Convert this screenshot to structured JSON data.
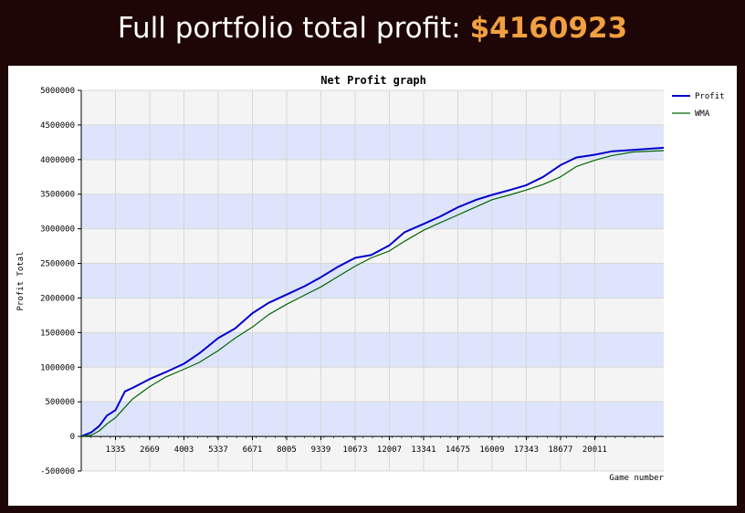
{
  "header": {
    "label": "Full portfolio total profit:",
    "amount": "$4160923",
    "amount_color": "#f0a040"
  },
  "chart_data": {
    "type": "line",
    "title": "Net Profit graph",
    "xlabel": "Game number",
    "ylabel": "Profit Total",
    "xlim": [
      0,
      22700
    ],
    "ylim": [
      -500000,
      5000000
    ],
    "xticks": [
      1335,
      2669,
      4003,
      5337,
      6671,
      8005,
      9339,
      10673,
      12007,
      13341,
      14675,
      16009,
      17343,
      18677,
      20011
    ],
    "yticks": [
      -500000,
      0,
      500000,
      1000000,
      1500000,
      2000000,
      2500000,
      3000000,
      3500000,
      4000000,
      4500000,
      5000000
    ],
    "grid": true,
    "legend_position": "top-right",
    "series": [
      {
        "name": "Profit",
        "color": "#0000cc",
        "points": [
          [
            0,
            0
          ],
          [
            400,
            60000
          ],
          [
            700,
            150000
          ],
          [
            1000,
            300000
          ],
          [
            1335,
            380000
          ],
          [
            1700,
            650000
          ],
          [
            2000,
            700000
          ],
          [
            2669,
            830000
          ],
          [
            3300,
            930000
          ],
          [
            4003,
            1050000
          ],
          [
            4600,
            1200000
          ],
          [
            5337,
            1420000
          ],
          [
            6000,
            1560000
          ],
          [
            6671,
            1780000
          ],
          [
            7300,
            1930000
          ],
          [
            8005,
            2050000
          ],
          [
            8700,
            2170000
          ],
          [
            9339,
            2300000
          ],
          [
            10000,
            2450000
          ],
          [
            10673,
            2580000
          ],
          [
            11300,
            2620000
          ],
          [
            12007,
            2760000
          ],
          [
            12600,
            2950000
          ],
          [
            13341,
            3070000
          ],
          [
            14000,
            3180000
          ],
          [
            14675,
            3310000
          ],
          [
            15400,
            3420000
          ],
          [
            16009,
            3490000
          ],
          [
            16700,
            3560000
          ],
          [
            17343,
            3630000
          ],
          [
            18000,
            3750000
          ],
          [
            18677,
            3920000
          ],
          [
            19300,
            4030000
          ],
          [
            20011,
            4070000
          ],
          [
            20700,
            4120000
          ],
          [
            21500,
            4140000
          ],
          [
            22700,
            4170000
          ]
        ]
      },
      {
        "name": "WMA",
        "color": "#006600",
        "points": [
          [
            0,
            0
          ],
          [
            400,
            20000
          ],
          [
            700,
            80000
          ],
          [
            1000,
            180000
          ],
          [
            1335,
            270000
          ],
          [
            1700,
            420000
          ],
          [
            2000,
            540000
          ],
          [
            2669,
            720000
          ],
          [
            3300,
            860000
          ],
          [
            4003,
            970000
          ],
          [
            4600,
            1070000
          ],
          [
            5337,
            1240000
          ],
          [
            6000,
            1420000
          ],
          [
            6671,
            1580000
          ],
          [
            7300,
            1760000
          ],
          [
            8005,
            1910000
          ],
          [
            8700,
            2040000
          ],
          [
            9339,
            2160000
          ],
          [
            10000,
            2310000
          ],
          [
            10673,
            2460000
          ],
          [
            11300,
            2580000
          ],
          [
            12007,
            2680000
          ],
          [
            12600,
            2820000
          ],
          [
            13341,
            2980000
          ],
          [
            14000,
            3090000
          ],
          [
            14675,
            3200000
          ],
          [
            15400,
            3320000
          ],
          [
            16009,
            3420000
          ],
          [
            16700,
            3490000
          ],
          [
            17343,
            3560000
          ],
          [
            18000,
            3640000
          ],
          [
            18677,
            3750000
          ],
          [
            19300,
            3900000
          ],
          [
            20011,
            3990000
          ],
          [
            20700,
            4060000
          ],
          [
            21500,
            4110000
          ],
          [
            22700,
            4130000
          ]
        ]
      }
    ]
  }
}
